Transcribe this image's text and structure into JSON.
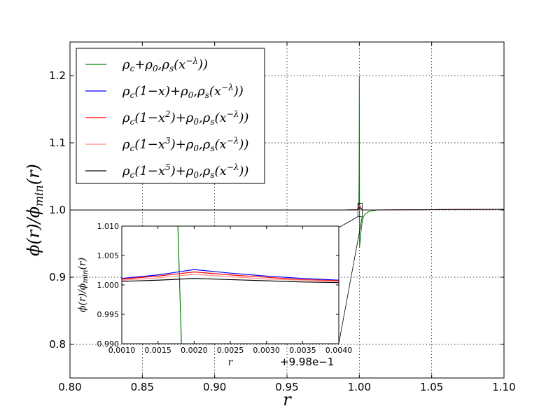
{
  "chart_data": [
    {
      "type": "line",
      "role": "main",
      "xlabel": "r",
      "ylabel": "φ(r)/φ_min(r)",
      "xlim": [
        0.8,
        1.1
      ],
      "ylim": [
        0.75,
        1.25
      ],
      "xticks": [
        0.8,
        0.85,
        0.9,
        0.95,
        1.0,
        1.05,
        1.1
      ],
      "xtick_labels": [
        "0.80",
        "0.85",
        "0.90",
        "0.95",
        "1.00",
        "1.05",
        "1.10"
      ],
      "yticks": [
        0.8,
        0.9,
        1.0,
        1.1,
        1.2
      ],
      "ytick_labels": [
        "0.8",
        "0.9",
        "1.0",
        "1.1",
        "1.2"
      ],
      "grid": true,
      "legend_position": "upper-left",
      "series": [
        {
          "name": "ρc+ρ0,ρs(x^−λ))",
          "color": "#008000",
          "x": [
            0.8,
            0.9,
            0.99,
            0.998,
            0.9993,
            0.99965,
            0.99985,
            1.0,
            1.0002,
            1.0007,
            1.0015,
            1.0025,
            1.004,
            1.007,
            1.012,
            1.02,
            1.05,
            1.1
          ],
          "y": [
            1.0,
            1.0,
            1.0,
            1.0005,
            1.002,
            1.01,
            1.06,
            1.2,
            0.945,
            0.956,
            0.975,
            0.988,
            0.994,
            0.998,
            1.0,
            1.0,
            1.0005,
            1.001
          ]
        },
        {
          "name": "ρc(1−x)+ρ0,ρs(x^−λ))",
          "color": "#0000ff",
          "x": [
            0.8,
            0.95,
            0.99,
            0.999,
            0.9995,
            1.0,
            1.002,
            1.01,
            1.05,
            1.1
          ],
          "y": [
            1.0,
            1.0,
            1.0,
            1.0005,
            1.003,
            1.008,
            1.0,
            1.0,
            1.0005,
            1.001
          ]
        },
        {
          "name": "ρc(1−x²)+ρ0,ρs(x^−λ))",
          "color": "#ff0000",
          "x": [
            0.8,
            0.95,
            0.99,
            0.999,
            0.9995,
            1.0,
            1.002,
            1.01,
            1.05,
            1.1
          ],
          "y": [
            1.0,
            1.0,
            1.0,
            1.0004,
            1.0025,
            1.007,
            1.0,
            1.0,
            1.0005,
            1.001
          ]
        },
        {
          "name": "ρc(1−x³)+ρ0,ρs(x^−λ))",
          "color": "#ff8c80",
          "x": [
            0.8,
            0.95,
            0.99,
            0.999,
            0.9995,
            1.0,
            1.002,
            1.01,
            1.05,
            1.1
          ],
          "y": [
            1.0,
            1.0,
            1.0,
            1.0003,
            1.002,
            1.006,
            1.0,
            1.0,
            1.0005,
            1.001
          ]
        },
        {
          "name": "ρc(1−x⁵)+ρ0,ρs(x^−λ))",
          "color": "#000000",
          "x": [
            0.8,
            0.95,
            0.99,
            0.999,
            0.9995,
            1.0,
            1.002,
            1.01,
            1.05,
            1.1
          ],
          "y": [
            1.0,
            1.0,
            1.0,
            1.0002,
            1.0012,
            1.004,
            1.0,
            1.0,
            1.0005,
            1.001
          ]
        }
      ],
      "zoom_box": {
        "x": [
          0.999,
          1.002
        ],
        "y": [
          0.99,
          1.01
        ]
      }
    },
    {
      "type": "line",
      "role": "inset",
      "xlabel": "r",
      "ylabel": "φ(r)/φ_min(r)",
      "offset_label": "+9.98e−1",
      "xlim": [
        0.001,
        0.004
      ],
      "ylim": [
        0.99,
        1.01
      ],
      "xticks": [
        0.001,
        0.0015,
        0.002,
        0.0025,
        0.003,
        0.0035,
        0.004
      ],
      "xtick_labels": [
        "0.0010",
        "0.0015",
        "0.0020",
        "0.0025",
        "0.0030",
        "0.0035",
        "0.0040"
      ],
      "yticks": [
        0.99,
        0.995,
        1.0,
        1.005,
        1.01
      ],
      "ytick_labels": [
        "0.990",
        "0.995",
        "1.000",
        "1.005",
        "1.010"
      ],
      "series": [
        {
          "name": "ρc+ρ0,ρs(x^−λ))",
          "color": "#008000",
          "x": [
            0.00175,
            0.0018,
            0.00185
          ],
          "y": [
            1.02,
            1.0,
            0.98
          ]
        },
        {
          "name": "ρc(1−x)+ρ0,ρs(x^−λ))",
          "color": "#0000ff",
          "x": [
            0.001,
            0.0015,
            0.002,
            0.0025,
            0.003,
            0.0035,
            0.004
          ],
          "y": [
            1.0011,
            1.0017,
            1.0026,
            1.002,
            1.0015,
            1.0011,
            1.0008
          ]
        },
        {
          "name": "ρc(1−x²)+ρ0,ρs(x^−λ))",
          "color": "#ff0000",
          "x": [
            0.001,
            0.0015,
            0.002,
            0.0025,
            0.003,
            0.0035,
            0.004
          ],
          "y": [
            1.001,
            1.0015,
            1.0022,
            1.0017,
            1.0013,
            1.0009,
            1.0007
          ]
        },
        {
          "name": "ρc(1−x³)+ρ0,ρs(x^−λ))",
          "color": "#ff8c80",
          "x": [
            0.001,
            0.0015,
            0.002,
            0.0025,
            0.003,
            0.0035,
            0.004
          ],
          "y": [
            1.0008,
            1.0012,
            1.0018,
            1.0014,
            1.001,
            1.0008,
            1.0006
          ]
        },
        {
          "name": "ρc(1−x⁵)+ρ0,ρs(x^−λ))",
          "color": "#000000",
          "x": [
            0.001,
            0.0015,
            0.002,
            0.0025,
            0.003,
            0.0035,
            0.004
          ],
          "y": [
            1.0006,
            1.0008,
            1.0011,
            1.0009,
            1.0007,
            1.0005,
            1.0004
          ]
        }
      ]
    }
  ]
}
